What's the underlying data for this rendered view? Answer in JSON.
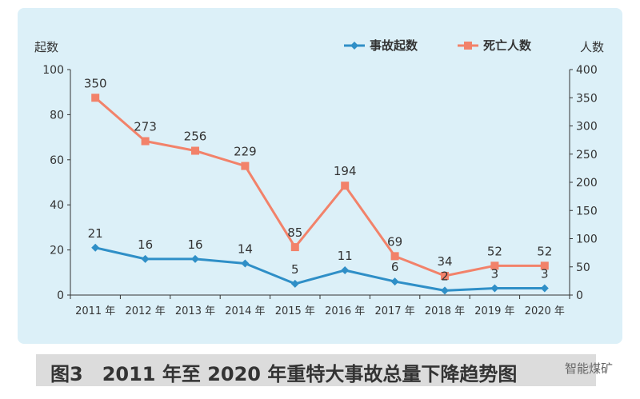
{
  "caption": "图3　2011 年至 2020 年重特大事故总量下降趋势图",
  "watermark": "智能煤矿",
  "chart_data": {
    "type": "line",
    "categories": [
      "2011 年",
      "2012 年",
      "2013 年",
      "2014 年",
      "2015 年",
      "2016 年",
      "2017 年",
      "2018 年",
      "2019 年",
      "2020 年"
    ],
    "y_left_label": "起数",
    "y_right_label": "人数",
    "y_left_ticks": [
      "0",
      "20",
      "40",
      "60",
      "80",
      "100"
    ],
    "y_right_ticks": [
      "0",
      "50",
      "100",
      "150",
      "200",
      "250",
      "300",
      "350",
      "400"
    ],
    "ylim_left": [
      0,
      100
    ],
    "ylim_right": [
      0,
      400
    ],
    "legend_position": "top-right",
    "series": [
      {
        "name": "事故起数",
        "axis": "left",
        "color": "#2f8fc7",
        "marker": "diamond",
        "values": [
          21,
          16,
          16,
          14,
          5,
          11,
          6,
          2,
          3,
          3
        ],
        "labels": [
          "21",
          "16",
          "16",
          "14",
          "5",
          "11",
          "6",
          "2",
          "3",
          "3"
        ]
      },
      {
        "name": "死亡人数",
        "axis": "right",
        "color": "#f2826a",
        "marker": "square",
        "values": [
          350,
          273,
          256,
          229,
          85,
          194,
          69,
          34,
          52,
          52
        ],
        "labels": [
          "350",
          "273",
          "256",
          "229",
          "85",
          "194",
          "69",
          "34",
          "52",
          "52"
        ]
      }
    ]
  }
}
